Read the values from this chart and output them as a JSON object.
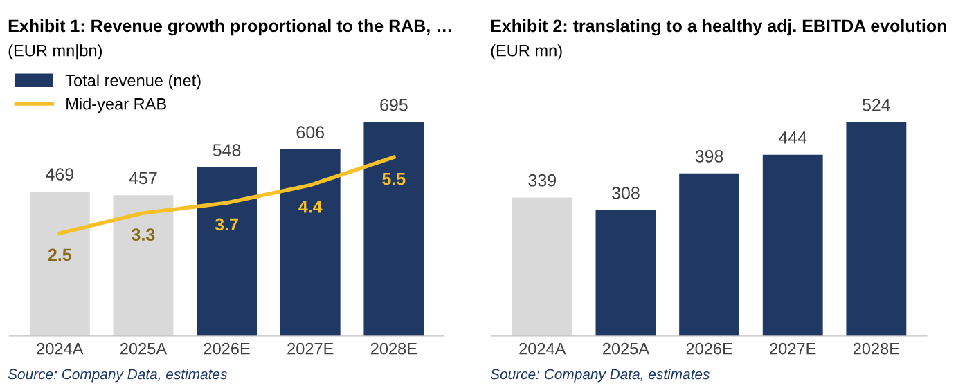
{
  "chart_data": [
    {
      "type": "bar",
      "title": "Exhibit 1: Revenue growth proportional to the RAB, …",
      "subtitle": "(EUR mn|bn)",
      "categories": [
        "2024A",
        "2025A",
        "2026E",
        "2027E",
        "2028E"
      ],
      "series": [
        {
          "name": "Total revenue (net)",
          "color": "#1f3864",
          "colors": [
            "#d9d9d9",
            "#d9d9d9",
            "#1f3864",
            "#1f3864",
            "#1f3864"
          ],
          "values": [
            469,
            457,
            548,
            606,
            695
          ]
        },
        {
          "name": "Mid-year RAB",
          "type": "line",
          "axis": "y2",
          "color": "#f5c02a",
          "values": [
            2.5,
            3.3,
            3.7,
            4.4,
            5.5
          ]
        }
      ],
      "tick_labels": "x",
      "data_labels": true,
      "grid": false,
      "legend": "top left",
      "marker": "none",
      "line_style": "solid",
      "annotations": [
        "Source: Company Data, estimates"
      ]
    },
    {
      "type": "bar",
      "title": "Exhibit 2: translating to a healthy adj. EBITDA evolution",
      "subtitle": "(EUR mn)",
      "categories": [
        "2024A",
        "2025A",
        "2026E",
        "2027E",
        "2028E"
      ],
      "series": [
        {
          "color": "#1f3864",
          "colors": [
            "#d9d9d9",
            "#1f3864",
            "#1f3864",
            "#1f3864",
            "#1f3864"
          ],
          "values": [
            339,
            308,
            398,
            444,
            524
          ]
        }
      ],
      "tick_labels": "x",
      "data_labels": true,
      "grid": false,
      "legend": false,
      "annotations": [
        "Source: Company Data, estimates"
      ]
    }
  ]
}
